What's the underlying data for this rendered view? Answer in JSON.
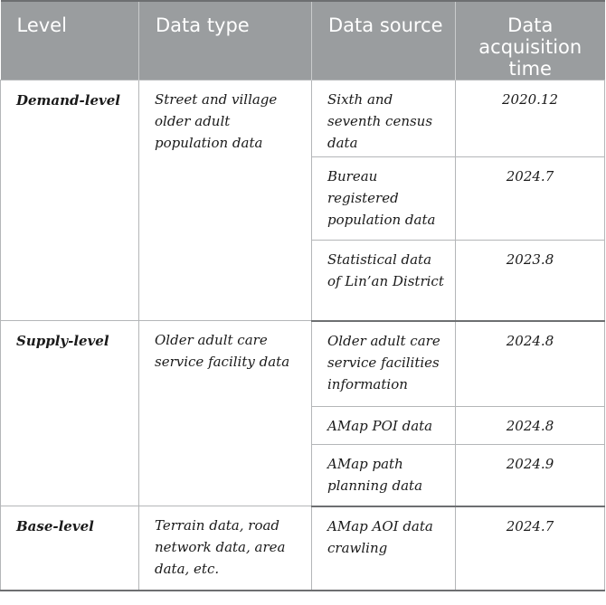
{
  "table": {
    "headers": [
      "Level",
      "Data type",
      "Data source",
      "Data acquisition time"
    ],
    "groups": [
      {
        "level": "Demand-level",
        "data_type": "Street and village older adult population data",
        "rows": [
          {
            "source": "Sixth and seventh census data",
            "time": "2020.12"
          },
          {
            "source": "Bureau registered population data",
            "time": "2024.7"
          },
          {
            "source": "Statistical data of Lin’an District",
            "time": "2023.8"
          }
        ]
      },
      {
        "level": "Supply-level",
        "data_type": "Older adult care service facility data",
        "rows": [
          {
            "source": "Older adult care service facilities information",
            "time": "2024.8"
          },
          {
            "source": "AMap POI data",
            "time": "2024.8"
          },
          {
            "source": "AMap path planning data",
            "time": "2024.9"
          }
        ]
      },
      {
        "level": "Base-level",
        "data_type": "Terrain data, road network data, area data, etc.",
        "rows": [
          {
            "source": "AMap AOI data crawling",
            "time": "2024.7"
          }
        ]
      }
    ]
  }
}
